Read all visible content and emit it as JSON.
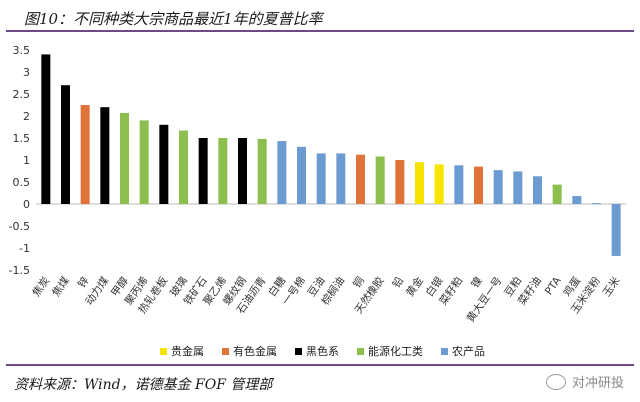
{
  "title": "图10：不同种类大宗商品最近1年的夏普比率",
  "source": "资料来源：Wind，诺德基金 FOF 管理部",
  "watermark": "对冲研投",
  "colors": {
    "precious": "#f5e400",
    "nonferrous": "#e0733a",
    "black": "#000000",
    "energy": "#8cbf4e",
    "agri": "#6c9bd2"
  },
  "legend": [
    {
      "label": "贵金属",
      "color": "#f5e400"
    },
    {
      "label": "有色金属",
      "color": "#e0733a"
    },
    {
      "label": "黑色系",
      "color": "#000000"
    },
    {
      "label": "能源化工类",
      "color": "#8cbf4e"
    },
    {
      "label": "农产品",
      "color": "#6c9bd2"
    }
  ],
  "chart_data": {
    "type": "bar",
    "ylim": [
      -1.5,
      3.5
    ],
    "yticks": [
      "3.5",
      "3",
      "2.5",
      "2",
      "1.5",
      "1",
      "0.5",
      "0",
      "-0.5",
      "-1",
      "-1.5"
    ],
    "categories": [
      "焦炭",
      "焦煤",
      "锌",
      "动力煤",
      "甲醇",
      "聚丙烯",
      "热轧卷板",
      "玻璃",
      "铁矿石",
      "聚乙烯",
      "螺纹钢",
      "石油沥青",
      "白糖",
      "一号棉",
      "豆油",
      "棕榈油",
      "铜",
      "天然橡胶",
      "铅",
      "黄金",
      "白银",
      "菜籽粕",
      "镍",
      "黄大豆一号",
      "豆粕",
      "菜籽油",
      "PTA",
      "鸡蛋",
      "玉米淀粉",
      "玉米"
    ],
    "values": [
      3.4,
      2.7,
      2.25,
      2.2,
      2.07,
      1.9,
      1.8,
      1.67,
      1.5,
      1.5,
      1.5,
      1.48,
      1.43,
      1.3,
      1.15,
      1.15,
      1.12,
      1.08,
      1.0,
      0.95,
      0.9,
      0.88,
      0.85,
      0.77,
      0.74,
      0.63,
      0.44,
      0.18,
      0.02,
      -1.18
    ],
    "groups": [
      "black",
      "black",
      "nonferrous",
      "black",
      "energy",
      "energy",
      "black",
      "energy",
      "black",
      "energy",
      "black",
      "energy",
      "agri",
      "agri",
      "agri",
      "agri",
      "nonferrous",
      "energy",
      "nonferrous",
      "precious",
      "precious",
      "agri",
      "nonferrous",
      "agri",
      "agri",
      "agri",
      "energy",
      "agri",
      "agri",
      "agri"
    ]
  }
}
